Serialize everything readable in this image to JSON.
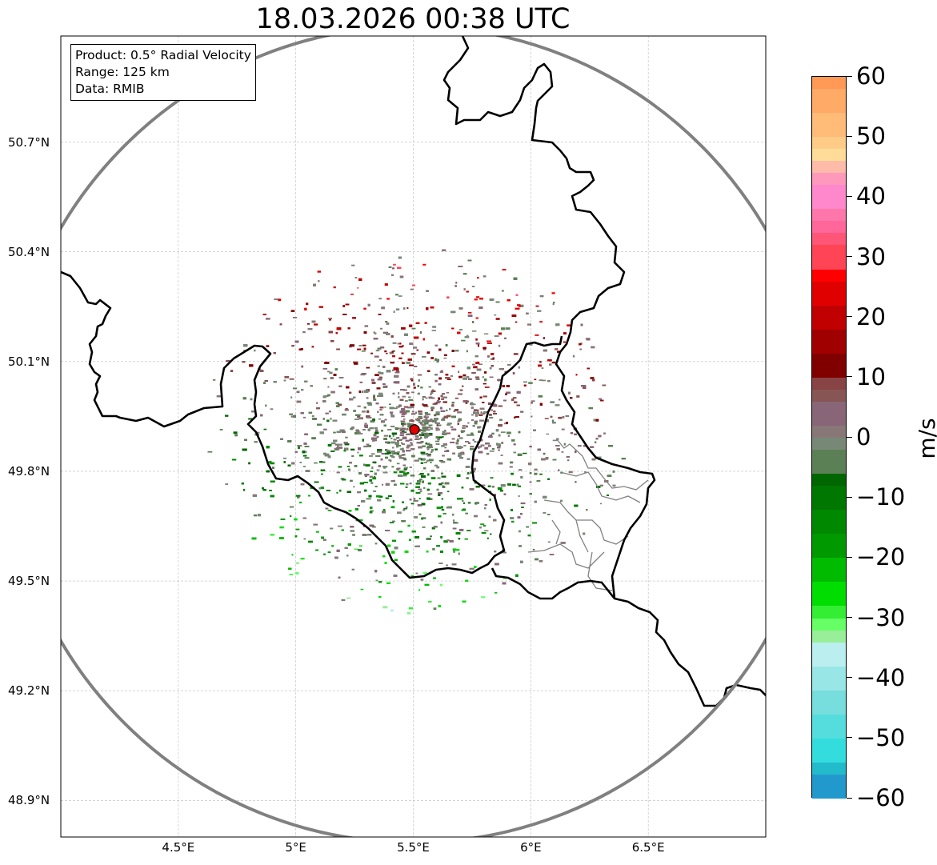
{
  "title": "18.03.2026 00:38 UTC",
  "info": {
    "product": "Product: 0.5° Radial Velocity",
    "range": "Range: 125 km",
    "source": "Data: RMIB"
  },
  "map": {
    "lon_range": [
      4.0,
      7.0
    ],
    "lat_range": [
      48.8,
      50.99
    ],
    "radar_site": {
      "name": "radar-site",
      "lon": 5.505,
      "lat": 49.914
    },
    "range_ring_km": 125,
    "colors": {
      "ring": "#808080",
      "border": "#000000",
      "admin": "#808080",
      "site": "#e00000"
    }
  },
  "lat_labels": [
    {
      "lat": 50.7,
      "text": "50.7°N"
    },
    {
      "lat": 50.4,
      "text": "50.4°N"
    },
    {
      "lat": 50.1,
      "text": "50.1°N"
    },
    {
      "lat": 49.8,
      "text": "49.8°N"
    },
    {
      "lat": 49.5,
      "text": "49.5°N"
    },
    {
      "lat": 49.2,
      "text": "49.2°N"
    },
    {
      "lat": 48.9,
      "text": "48.9°N"
    }
  ],
  "lon_labels": [
    {
      "lon": 4.5,
      "text": "4.5°E"
    },
    {
      "lon": 5.0,
      "text": "5°E"
    },
    {
      "lon": 5.5,
      "text": "5.5°E"
    },
    {
      "lon": 6.0,
      "text": "6°E"
    },
    {
      "lon": 6.5,
      "text": "6.5°E"
    }
  ],
  "colorbar": {
    "unit": "m/s",
    "min": -60,
    "max": 60,
    "ticks": [
      {
        "value": 60,
        "text": "60"
      },
      {
        "value": 50,
        "text": "50"
      },
      {
        "value": 40,
        "text": "40"
      },
      {
        "value": 30,
        "text": "30"
      },
      {
        "value": 20,
        "text": "20"
      },
      {
        "value": 10,
        "text": "10"
      },
      {
        "value": 0,
        "text": "0"
      },
      {
        "value": -10,
        "text": "−10"
      },
      {
        "value": -20,
        "text": "−20"
      },
      {
        "value": -30,
        "text": "−30"
      },
      {
        "value": -40,
        "text": "−40"
      },
      {
        "value": -50,
        "text": "−50"
      },
      {
        "value": -60,
        "text": "−60"
      }
    ],
    "stops": [
      {
        "from": 58,
        "to": 60,
        "color": "#ff9955"
      },
      {
        "from": 54,
        "to": 58,
        "color": "#ffaa66"
      },
      {
        "from": 50,
        "to": 54,
        "color": "#ffbb77"
      },
      {
        "from": 48,
        "to": 50,
        "color": "#ffcc88"
      },
      {
        "from": 46,
        "to": 48,
        "color": "#ffdd99"
      },
      {
        "from": 44,
        "to": 46,
        "color": "#ffbbaa"
      },
      {
        "from": 42,
        "to": 44,
        "color": "#ff99bb"
      },
      {
        "from": 38,
        "to": 42,
        "color": "#ff88cc"
      },
      {
        "from": 36,
        "to": 38,
        "color": "#ff77aa"
      },
      {
        "from": 34,
        "to": 36,
        "color": "#ff6699"
      },
      {
        "from": 32,
        "to": 34,
        "color": "#ff5577"
      },
      {
        "from": 28,
        "to": 32,
        "color": "#ff4455"
      },
      {
        "from": 26,
        "to": 28,
        "color": "#ff0000"
      },
      {
        "from": 22,
        "to": 26,
        "color": "#e00000"
      },
      {
        "from": 18,
        "to": 22,
        "color": "#c00000"
      },
      {
        "from": 14,
        "to": 18,
        "color": "#a00000"
      },
      {
        "from": 10,
        "to": 14,
        "color": "#800000"
      },
      {
        "from": 8,
        "to": 10,
        "color": "#884444"
      },
      {
        "from": 6,
        "to": 8,
        "color": "#885555"
      },
      {
        "from": 2,
        "to": 6,
        "color": "#886677"
      },
      {
        "from": 0,
        "to": 2,
        "color": "#887777"
      },
      {
        "from": -2,
        "to": 0,
        "color": "#778877"
      },
      {
        "from": -6,
        "to": -2,
        "color": "#5c8055"
      },
      {
        "from": -8,
        "to": -6,
        "color": "#006600"
      },
      {
        "from": -12,
        "to": -8,
        "color": "#007700"
      },
      {
        "from": -16,
        "to": -12,
        "color": "#008800"
      },
      {
        "from": -20,
        "to": -16,
        "color": "#009900"
      },
      {
        "from": -24,
        "to": -20,
        "color": "#00bb00"
      },
      {
        "from": -28,
        "to": -24,
        "color": "#00dd00"
      },
      {
        "from": -30,
        "to": -28,
        "color": "#33ee33"
      },
      {
        "from": -32,
        "to": -30,
        "color": "#66ff66"
      },
      {
        "from": -34,
        "to": -32,
        "color": "#99ee99"
      },
      {
        "from": -38,
        "to": -34,
        "color": "#bbeeee"
      },
      {
        "from": -42,
        "to": -38,
        "color": "#99e6e6"
      },
      {
        "from": -46,
        "to": -42,
        "color": "#77dddd"
      },
      {
        "from": -50,
        "to": -46,
        "color": "#55dddd"
      },
      {
        "from": -54,
        "to": -50,
        "color": "#33dddd"
      },
      {
        "from": -56,
        "to": -54,
        "color": "#22bbcc"
      },
      {
        "from": -60,
        "to": -56,
        "color": "#2299cc"
      }
    ]
  }
}
